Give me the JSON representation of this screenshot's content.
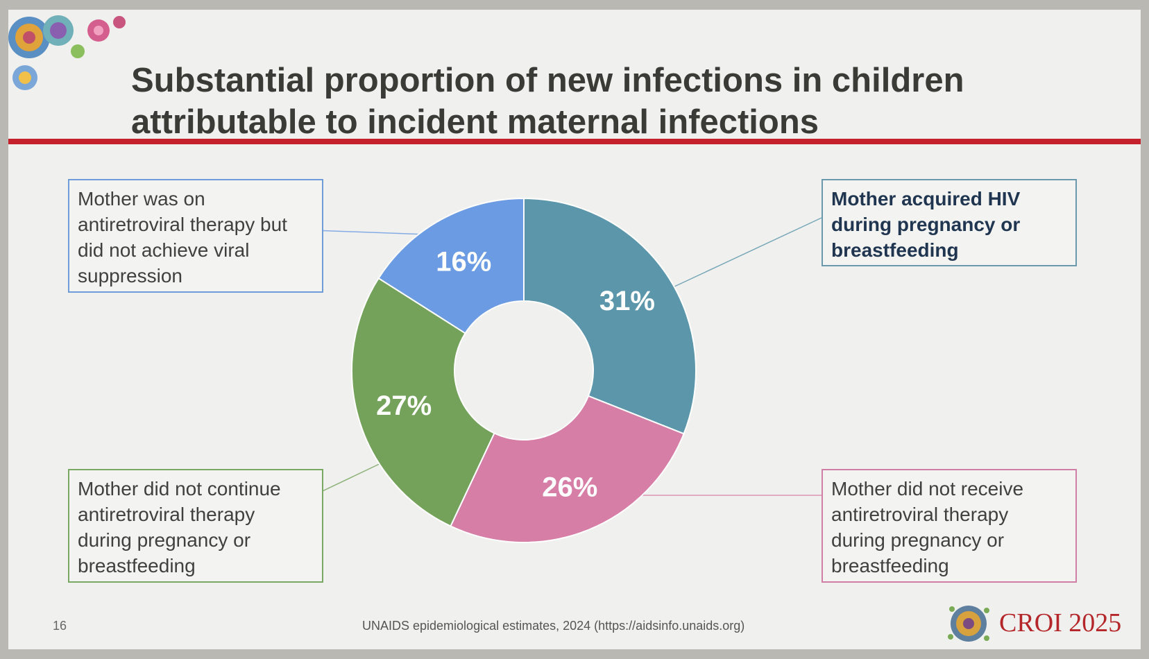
{
  "slide": {
    "title_line1": "Substantial proportion of new infections in children",
    "title_line2": "attributable to incident maternal infections",
    "slide_number": "16",
    "source": "UNAIDS epidemiological estimates, 2024 (https://aidsinfo.unaids.org)",
    "logo_text": "CROI 2025",
    "colors": {
      "title_rule": "#c4212c",
      "background": "#f0f0ee"
    }
  },
  "labels": {
    "teal": [
      "Mother acquired HIV",
      "during pregnancy or",
      "breastfeeding"
    ],
    "pink": [
      "Mother did not receive",
      "antiretroviral therapy",
      "during pregnancy or",
      "breastfeeding"
    ],
    "green": [
      "Mother did not continue",
      "antiretroviral therapy",
      "during pregnancy or",
      "breastfeeding"
    ],
    "blue": [
      "Mother was on",
      "antiretroviral therapy but",
      "did not achieve viral",
      "suppression"
    ]
  },
  "chart_data": {
    "type": "pie",
    "style": "donut",
    "title": "",
    "start": "top, clockwise",
    "slices": [
      {
        "category": "Mother acquired HIV during pregnancy or breastfeeding",
        "value": 31,
        "label": "31%",
        "color": "#5b96ab",
        "label_box": "top-right"
      },
      {
        "category": "Mother did not receive antiretroviral therapy during pregnancy or breastfeeding",
        "value": 26,
        "label": "26%",
        "color": "#d67ea6",
        "label_box": "bottom-right"
      },
      {
        "category": "Mother did not continue antiretroviral therapy during pregnancy or breastfeeding",
        "value": 27,
        "label": "27%",
        "color": "#74a25b",
        "label_box": "bottom-left"
      },
      {
        "category": "Mother was on antiretroviral therapy but did not achieve viral suppression",
        "value": 16,
        "label": "16%",
        "color": "#6b9be2",
        "label_box": "top-left"
      }
    ]
  }
}
